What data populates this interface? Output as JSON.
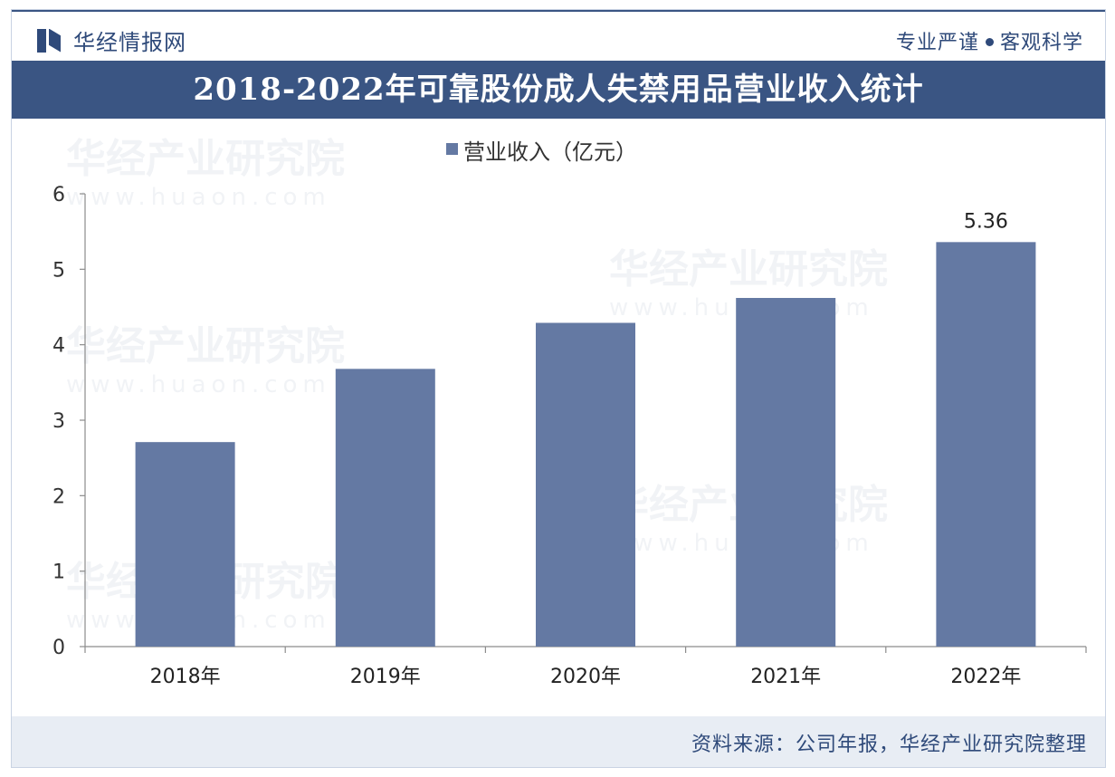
{
  "header": {
    "brand": "华经情报网",
    "slogan_left": "专业严谨",
    "slogan_right": "客观科学"
  },
  "title": "2018-2022年可靠股份成人失禁用品营业收入统计",
  "footer": {
    "source": "资料来源：公司年报，华经产业研究院整理"
  },
  "watermark": {
    "text": "华经产业研究院",
    "url": "www.huaon.com"
  },
  "colors": {
    "bar": "#6479a3",
    "title_bg": "#3a5583",
    "text": "#2f4a7a"
  },
  "chart_data": {
    "type": "bar",
    "categories": [
      "2018年",
      "2019年",
      "2020年",
      "2021年",
      "2022年"
    ],
    "series": [
      {
        "name": "营业收入（亿元）",
        "values": [
          2.71,
          3.68,
          4.29,
          4.62,
          5.36
        ]
      }
    ],
    "data_labels": [
      "",
      "",
      "",
      "",
      "5.36"
    ],
    "yticks": [
      "0",
      "1",
      "2",
      "3",
      "4",
      "5",
      "6"
    ],
    "ylim": [
      0,
      6
    ],
    "legend_position": "top-center",
    "grid": false
  }
}
